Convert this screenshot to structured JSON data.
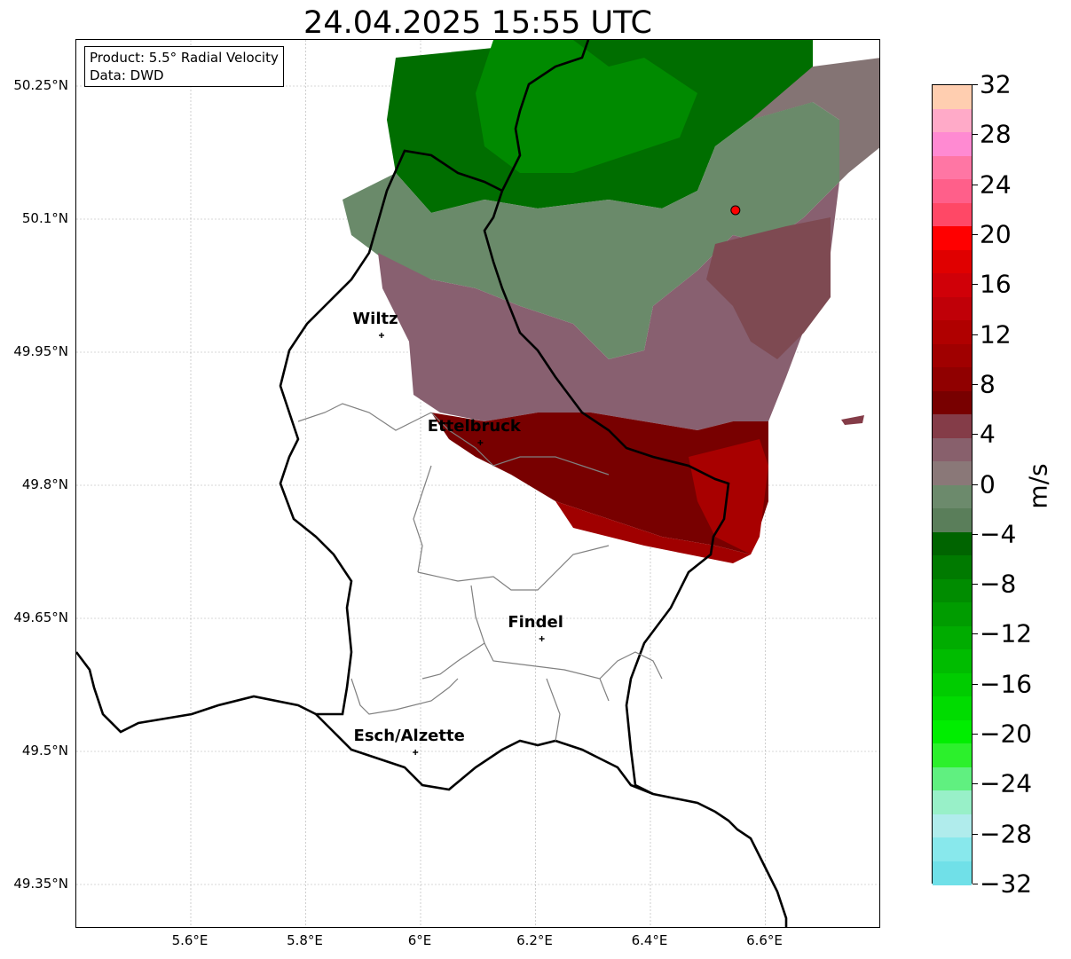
{
  "title": "24.04.2025 15:55 UTC",
  "info": {
    "product": "Product: 5.5° Radial Velocity",
    "data": "Data: DWD"
  },
  "lat_ticks": [
    {
      "label": "50.25°N",
      "lat": 50.25
    },
    {
      "label": "50.1°N",
      "lat": 50.1
    },
    {
      "label": "49.95°N",
      "lat": 49.95
    },
    {
      "label": "49.8°N",
      "lat": 49.8
    },
    {
      "label": "49.65°N",
      "lat": 49.65
    },
    {
      "label": "49.5°N",
      "lat": 49.5
    },
    {
      "label": "49.35°N",
      "lat": 49.35
    }
  ],
  "lon_ticks": [
    {
      "label": "5.6°E",
      "lon": 5.6
    },
    {
      "label": "5.8°E",
      "lon": 5.8
    },
    {
      "label": "6°E",
      "lon": 6.0
    },
    {
      "label": "6.2°E",
      "lon": 6.2
    },
    {
      "label": "6.4°E",
      "lon": 6.4
    },
    {
      "label": "6.6°E",
      "lon": 6.6
    }
  ],
  "cities": [
    {
      "name": "Wiltz",
      "lat": 49.969,
      "lon": 5.932
    },
    {
      "name": "Ettelbruck",
      "lat": 49.848,
      "lon": 6.104
    },
    {
      "name": "Findel",
      "lat": 49.627,
      "lon": 6.211
    },
    {
      "name": "Esch/Alzette",
      "lat": 49.499,
      "lon": 5.991
    }
  ],
  "radar_site": {
    "lat": 50.11,
    "lon": 6.548,
    "color": "#ff0000"
  },
  "colorbar": {
    "unit": "m/s",
    "min": -32,
    "max": 32,
    "tick_labels": [
      "32",
      "28",
      "24",
      "20",
      "16",
      "12",
      "8",
      "4",
      "0",
      "−4",
      "−8",
      "−12",
      "−16",
      "−20",
      "−24",
      "−28",
      "−32"
    ],
    "tick_values": [
      32,
      28,
      24,
      20,
      16,
      12,
      8,
      4,
      0,
      -4,
      -8,
      -12,
      -16,
      -20,
      -24,
      -28,
      -32
    ],
    "colors_top_to_bottom": [
      "#ffceb0",
      "#ffaac8",
      "#ff8ad2",
      "#ff76a4",
      "#ff5f8a",
      "#ff4866",
      "#ff0000",
      "#e00000",
      "#d00008",
      "#c00008",
      "#b00000",
      "#a00000",
      "#900000",
      "#780000",
      "#843c48",
      "#88606c",
      "#8a7878",
      "#6c8a6c",
      "#5a7e5a",
      "#006400",
      "#007a00",
      "#008c00",
      "#009c00",
      "#00ac00",
      "#00bc00",
      "#00cc00",
      "#00dc00",
      "#00ee00",
      "#2cf02c",
      "#60f080",
      "#98f0c8",
      "#b0ecec",
      "#88e8ec",
      "#70e0e8"
    ]
  }
}
